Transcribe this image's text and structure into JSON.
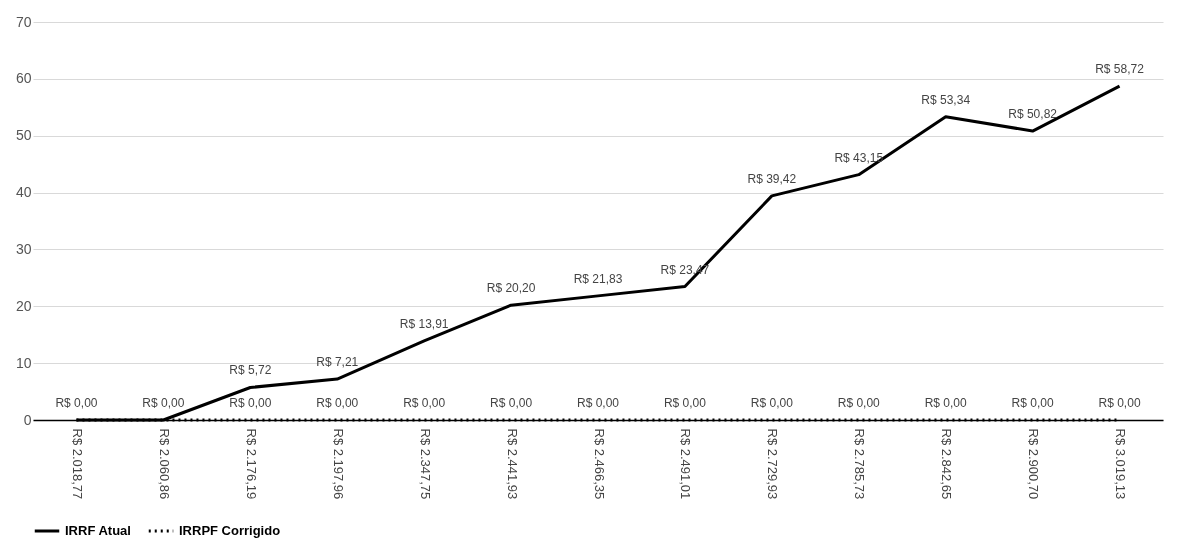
{
  "chart_data": {
    "type": "line",
    "categories": [
      "R$ 2.018,77",
      "R$ 2.060,86",
      "R$ 2.176,19",
      "R$ 2.197,96",
      "R$ 2.347,75",
      "R$ 2.441,93",
      "R$ 2.466,35",
      "R$ 2.491,01",
      "R$ 2.729,93",
      "R$ 2.785,73",
      "R$ 2.842,65",
      "R$ 2.900,70",
      "R$ 3.019,13"
    ],
    "series": [
      {
        "name": "IRRF Atual",
        "color": "#000000",
        "line_style": "solid",
        "values": [
          0,
          0,
          5.72,
          7.21,
          13.91,
          20.2,
          21.83,
          23.47,
          39.42,
          43.15,
          53.34,
          50.82,
          58.72
        ],
        "value_labels": [
          null,
          null,
          "R$ 5,72",
          "R$ 7,21",
          "R$ 13,91",
          "R$ 20,20",
          "R$ 21,83",
          "R$ 23,47",
          "R$ 39,42",
          "R$ 43,15",
          "R$ 53,34",
          "R$ 50,82",
          "R$ 58,72"
        ]
      },
      {
        "name": "IRRPF Corrigido",
        "color": "#000000",
        "line_style": "dotted",
        "values": [
          0,
          0,
          0,
          0,
          0,
          0,
          0,
          0,
          0,
          0,
          0,
          0,
          0
        ],
        "value_labels": [
          "R$ 0,00",
          "R$ 0,00",
          "R$ 0,00",
          "R$ 0,00",
          "R$ 0,00",
          "R$ 0,00",
          "R$ 0,00",
          "R$ 0,00",
          "R$ 0,00",
          "R$ 0,00",
          "R$ 0,00",
          "R$ 0,00",
          "R$ 0,00"
        ]
      }
    ],
    "ylim": [
      0,
      70
    ],
    "yticks": [
      0,
      10,
      20,
      30,
      40,
      50,
      60,
      70
    ],
    "grid": "y",
    "legend": "bottom",
    "marker": "none"
  }
}
